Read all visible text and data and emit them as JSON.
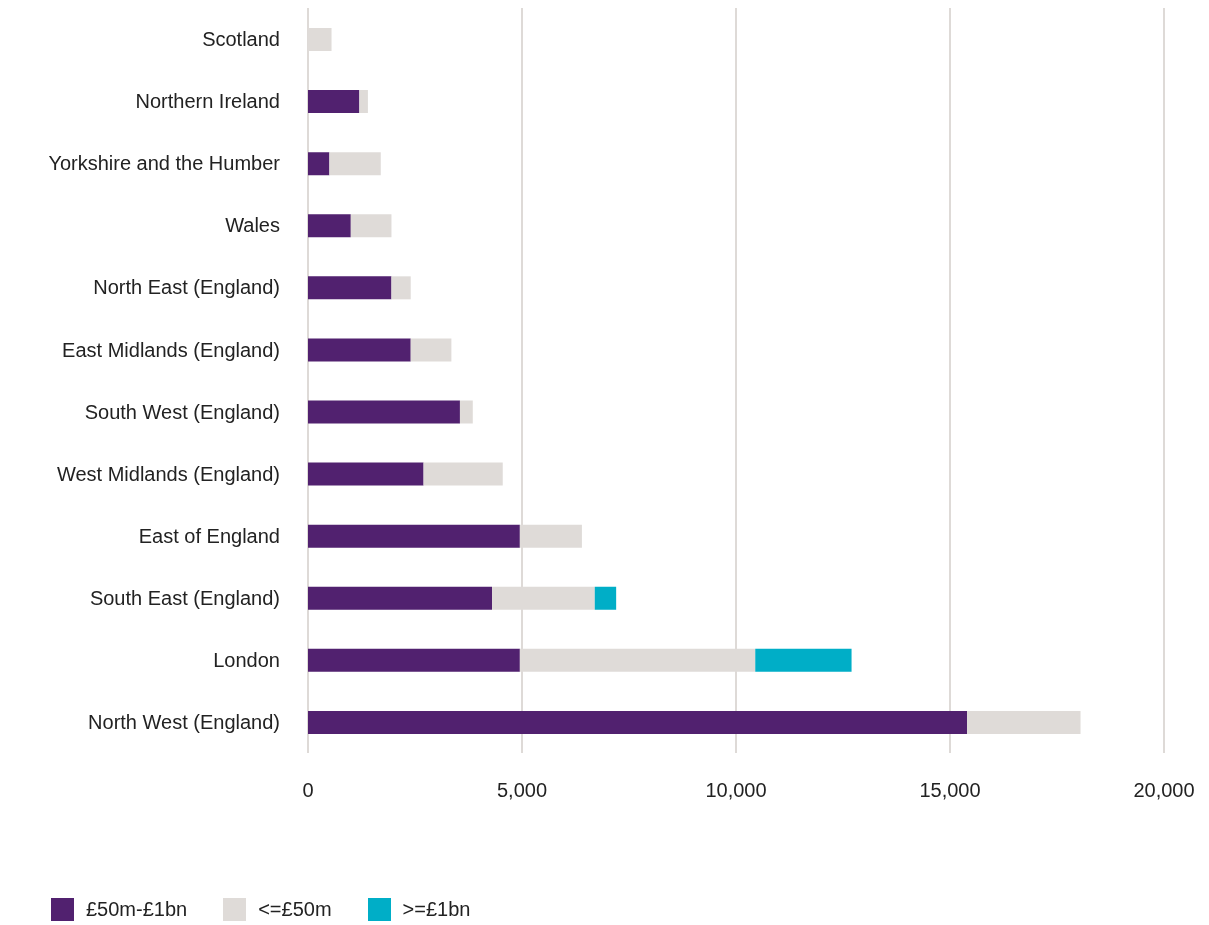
{
  "chart_data": {
    "type": "bar",
    "orientation": "horizontal",
    "stacked": true,
    "categories": [
      "Scotland",
      "Northern Ireland",
      "Yorkshire and the Humber",
      "Wales",
      "North East (England)",
      "East Midlands (England)",
      "South West (England)",
      "West Midlands (England)",
      "East of England",
      "South East (England)",
      "London",
      "North West (England)"
    ],
    "series": [
      {
        "name": "£50m-£1bn",
        "color": "#51216f",
        "values": [
          0,
          1200,
          500,
          1000,
          1950,
          2400,
          3550,
          2700,
          4950,
          4300,
          4950,
          15400
        ]
      },
      {
        "name": "<=£50m",
        "color": "#dfdbd8",
        "values": [
          550,
          200,
          1200,
          950,
          450,
          950,
          300,
          1850,
          1450,
          2400,
          5500,
          2650
        ]
      },
      {
        "name": ">=£1bn",
        "color": "#00aec7",
        "values": [
          0,
          0,
          0,
          0,
          0,
          0,
          0,
          0,
          0,
          500,
          2250,
          0
        ]
      }
    ],
    "xlim": [
      0,
      20000
    ],
    "xticks": [
      {
        "value": 0,
        "label": "0"
      },
      {
        "value": 5000,
        "label": "5,000"
      },
      {
        "value": 10000,
        "label": "10,000"
      },
      {
        "value": 15000,
        "label": "15,000"
      },
      {
        "value": 20000,
        "label": "20,000"
      }
    ],
    "grid": "x",
    "legend": "bottom"
  }
}
